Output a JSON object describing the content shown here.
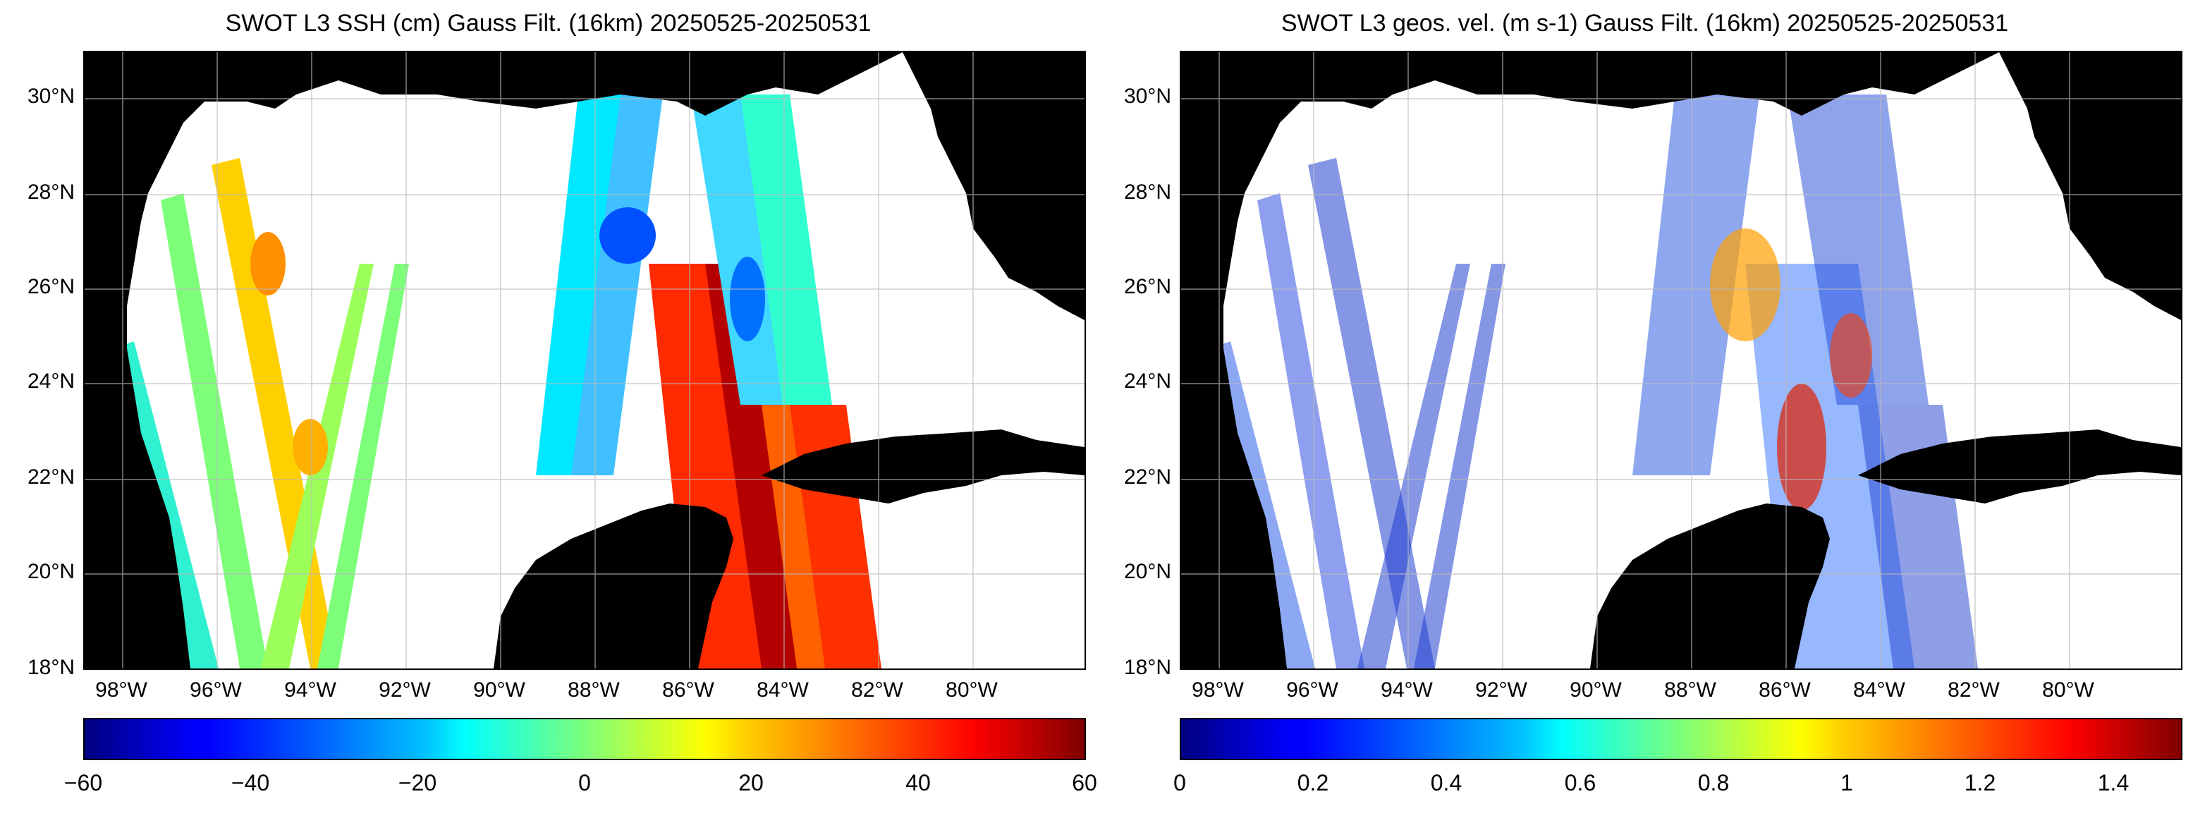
{
  "panels": [
    {
      "title": "SWOT L3 SSH (cm) Gauss Filt. (16km) 20250525-20250531",
      "lat_labels": [
        "30°N",
        "28°N",
        "26°N",
        "24°N",
        "22°N",
        "20°N",
        "18°N"
      ],
      "lon_labels": [
        "98°W",
        "96°W",
        "94°W",
        "92°W",
        "90°W",
        "88°W",
        "86°W",
        "84°W",
        "82°W",
        "80°W"
      ],
      "colorbar": {
        "colormap": "jet",
        "range": [
          -60,
          60
        ],
        "ticks": [
          "−60",
          "−40",
          "−20",
          "0",
          "20",
          "40",
          "60"
        ]
      }
    },
    {
      "title": "SWOT L3 geos. vel. (m s-1) Gauss Filt. (16km) 20250525-20250531",
      "lat_labels": [
        "30°N",
        "28°N",
        "26°N",
        "24°N",
        "22°N",
        "20°N",
        "18°N"
      ],
      "lon_labels": [
        "98°W",
        "96°W",
        "94°W",
        "92°W",
        "90°W",
        "88°W",
        "86°W",
        "84°W",
        "82°W",
        "80°W"
      ],
      "colorbar": {
        "colormap": "jet",
        "range": [
          0,
          1.5
        ],
        "ticks": [
          "0",
          "0.2",
          "0.4",
          "0.6",
          "0.8",
          "1",
          "1.2",
          "1.4"
        ]
      }
    }
  ],
  "colors": {
    "land": "#000000",
    "ocean": "#ffffff",
    "grid": "#bbbbbb"
  }
}
